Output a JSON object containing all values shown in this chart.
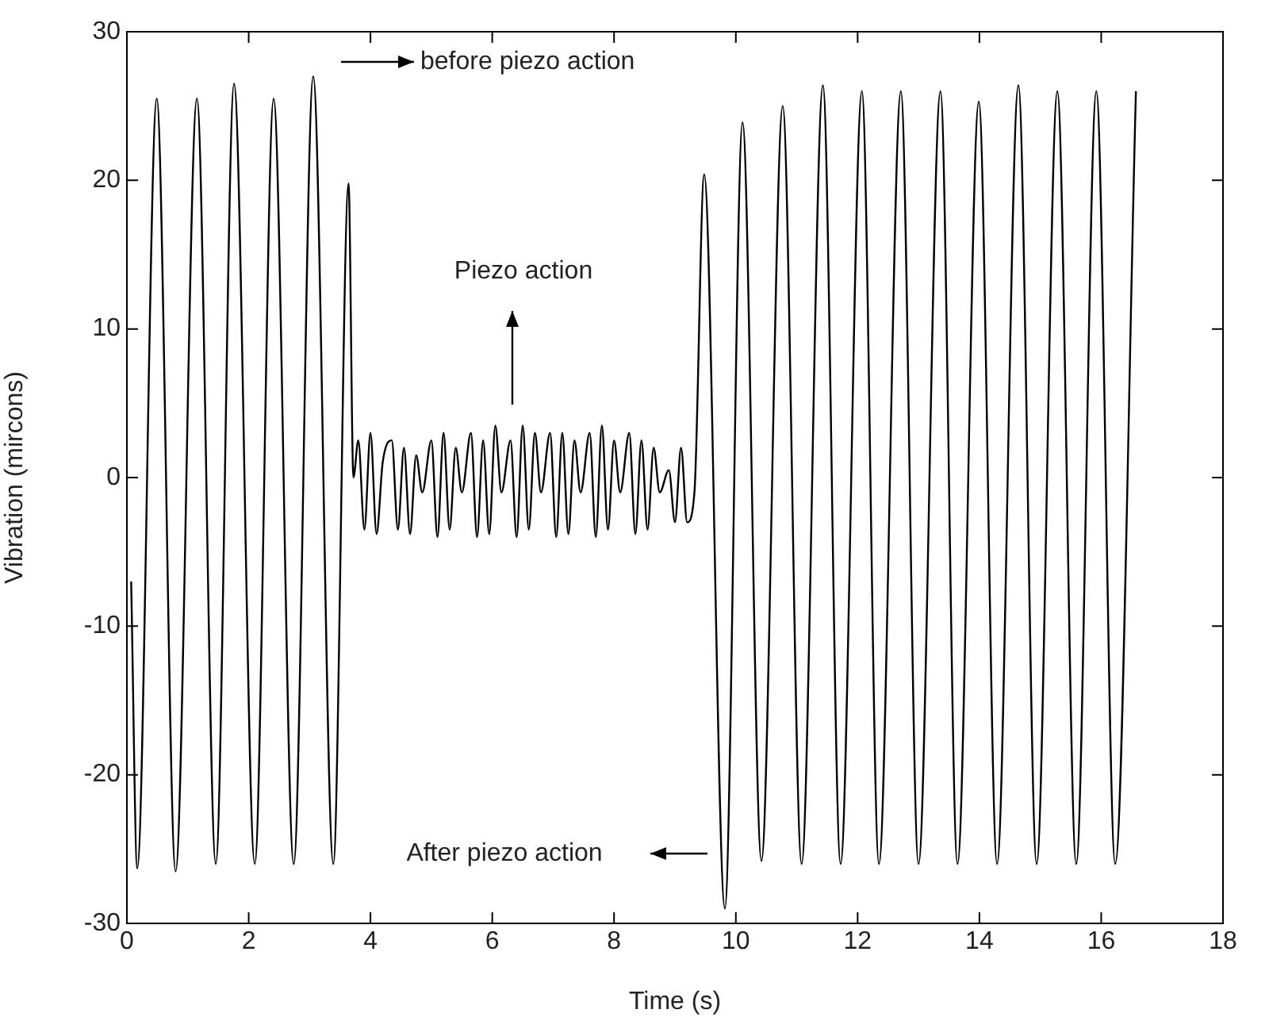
{
  "chart_data": {
    "type": "line",
    "xlabel": "Time (s)",
    "ylabel": "Vibration (mircons)",
    "color": "#000000",
    "marker": "none",
    "line_style": "solid",
    "grid": false,
    "legend": false,
    "x": [
      0.07,
      0.17,
      0.49,
      0.8,
      1.15,
      1.46,
      1.76,
      2.1,
      2.41,
      2.74,
      3.06,
      3.39,
      3.64,
      3.72,
      3.8,
      3.9,
      4.0,
      4.1,
      4.2,
      4.35,
      4.45,
      4.55,
      4.65,
      4.75,
      4.85,
      5.0,
      5.1,
      5.2,
      5.3,
      5.4,
      5.5,
      5.65,
      5.75,
      5.85,
      5.95,
      6.05,
      6.15,
      6.3,
      6.4,
      6.5,
      6.6,
      6.7,
      6.8,
      6.95,
      7.05,
      7.15,
      7.25,
      7.35,
      7.45,
      7.6,
      7.7,
      7.8,
      7.9,
      8.0,
      8.1,
      8.25,
      8.35,
      8.45,
      8.55,
      8.65,
      8.75,
      8.9,
      9.0,
      9.1,
      9.2,
      9.32,
      9.48,
      9.82,
      10.11,
      10.42,
      10.77,
      11.08,
      11.43,
      11.72,
      12.07,
      12.35,
      12.71,
      13.0,
      13.36,
      13.64,
      13.99,
      14.29,
      14.64,
      14.94,
      15.28,
      15.59,
      15.92,
      16.23,
      16.57
    ],
    "values": [
      -7,
      -26.3,
      25.5,
      -26.5,
      25.5,
      -26,
      26.5,
      -26,
      25.5,
      -26,
      27,
      -26,
      19.8,
      0,
      2.5,
      -3.5,
      3,
      -3.8,
      1,
      2.5,
      -3.5,
      2,
      -3.8,
      1.5,
      -1,
      2.5,
      -4,
      3,
      -3.5,
      2,
      -1,
      3,
      -4,
      2.5,
      -3.8,
      3.5,
      -1,
      2.5,
      -4,
      3.5,
      -3.5,
      3,
      -1,
      3,
      -4,
      3,
      -3.8,
      2.5,
      -1,
      3,
      -4,
      3.5,
      -3.5,
      2.5,
      -1,
      3,
      -3.8,
      2.5,
      -3.5,
      2,
      -1,
      0.5,
      -3,
      2,
      -3,
      -1,
      20.4,
      -29,
      23.9,
      -25.8,
      25,
      -26,
      26.4,
      -26,
      26,
      -26,
      26,
      -26,
      26,
      -26,
      25.3,
      -26,
      26.4,
      -26,
      26,
      -26,
      26,
      -26,
      26
    ],
    "xlim": [
      0,
      18
    ],
    "xticks": [
      0,
      2,
      4,
      6,
      8,
      10,
      12,
      14,
      16,
      18
    ],
    "ylim": [
      -30,
      30
    ],
    "yticks": [
      -30,
      -20,
      -10,
      0,
      10,
      20,
      30
    ],
    "annotations": [
      "before piezo action",
      "Piezo action",
      "After piezo action"
    ]
  }
}
